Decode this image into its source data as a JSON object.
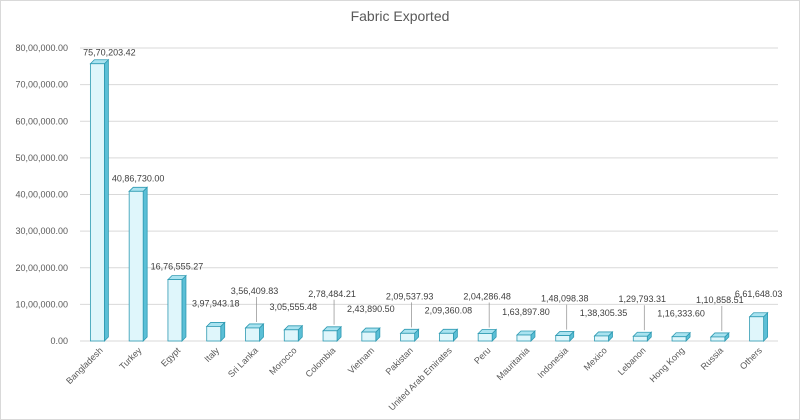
{
  "chart_data": {
    "type": "bar",
    "title": "Fabric Exported",
    "xlabel": "",
    "ylabel": "",
    "ylim": [
      0,
      8000000
    ],
    "y_tick_labels": [
      "0.00",
      "10,00,000.00",
      "20,00,000.00",
      "30,00,000.00",
      "40,00,000.00",
      "50,00,000.00",
      "60,00,000.00",
      "70,00,000.00",
      "80,00,000.00"
    ],
    "grid": true,
    "legend": "none",
    "bar_style": "3d",
    "categories": [
      "Bangladesh",
      "Turkey",
      "Egypt",
      "Italy",
      "Sri Lanka",
      "Morocco",
      "Colombia",
      "Vietnam",
      "Pakistan",
      "United Arab Emirates",
      "Peru",
      "Mauritania",
      "Indonesia",
      "Mexico",
      "Lebanon",
      "Hong Kong",
      "Russia",
      "Others"
    ],
    "values": [
      7570203.42,
      4086730.0,
      1676555.27,
      397943.18,
      356409.83,
      305555.48,
      278484.21,
      243890.5,
      209537.93,
      209360.08,
      204286.48,
      163897.8,
      148098.38,
      138305.35,
      129793.31,
      116333.6,
      110858.51,
      661648.03
    ],
    "data_labels": [
      "75,70,203.42",
      "40,86,730.00",
      "16,76,555.27",
      "3,97,943.18",
      "3,56,409.83",
      "3,05,555.48",
      "2,78,484.21",
      "2,43,890.50",
      "2,09,537.93",
      "2,09,360.08",
      "2,04,286.48",
      "1,63,897.80",
      "1,48,098.38",
      "1,38,305.35",
      "1,29,793.31",
      "1,16,333.60",
      "1,10,858.51",
      "6,61,648.03"
    ],
    "colors": {
      "bar_front": "#dff6fb",
      "bar_edge": "#2e9ab2",
      "bar_side": "#5bbfd6",
      "bar_top": "#a9e3f0",
      "grid": "#d9d9d9",
      "axis_text": "#595959"
    }
  }
}
